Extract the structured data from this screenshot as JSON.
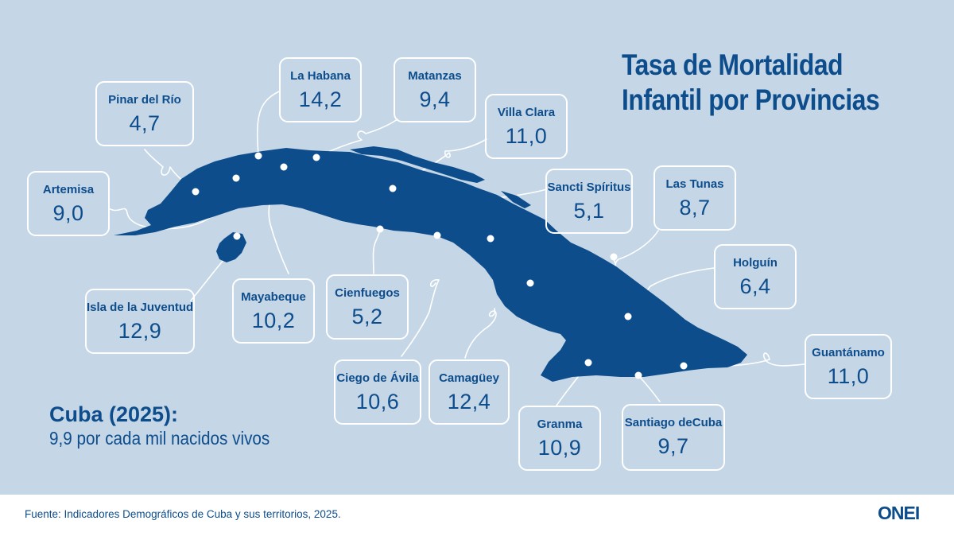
{
  "title": {
    "line1": "Tasa de Mortalidad",
    "line2": "Infantil por Provincias"
  },
  "provinces": [
    {
      "name": "Pinar del Río",
      "value": "4,7"
    },
    {
      "name": "La Habana",
      "value": "14,2"
    },
    {
      "name": "Matanzas",
      "value": "9,4"
    },
    {
      "name": "Villa Clara",
      "value": "11,0"
    },
    {
      "name": "Artemisa",
      "value": "9,0"
    },
    {
      "name": "Sancti Spíritus",
      "value": "5,1"
    },
    {
      "name": "Las Tunas",
      "value": "8,7"
    },
    {
      "name": "Holguín",
      "value": "6,4"
    },
    {
      "name": "Isla de la Juventud",
      "value": "12,9"
    },
    {
      "name": "Mayabeque",
      "value": "10,2"
    },
    {
      "name": "Cienfuegos",
      "value": "5,2"
    },
    {
      "name": "Guantánamo",
      "value": "11,0"
    },
    {
      "name": "Ciego de Ávila",
      "value": "10,6"
    },
    {
      "name": "Camagüey",
      "value": "12,4"
    },
    {
      "name": "Granma",
      "value": "10,9"
    },
    {
      "name": "Santiago deCuba",
      "value": "9,7"
    }
  ],
  "summary": {
    "title": "Cuba (2025):",
    "value": "9,9 por cada mil nacidos vivos"
  },
  "footer": {
    "source": "Fuente: Indicadores Demográficos de Cuba y sus territorios, 2025.",
    "logo": "ONEI"
  },
  "colors": {
    "background": "#c5d6e6",
    "map": "#0d4d8c",
    "text": "#0d4d8c",
    "connector": "#ffffff"
  }
}
